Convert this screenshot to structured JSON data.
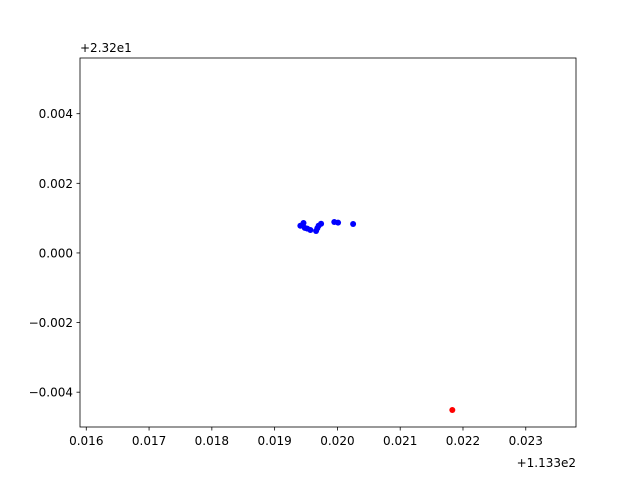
{
  "chart_data": {
    "type": "scatter",
    "x_offset_label": "+1.133e2",
    "y_offset_label": "+2.32e1",
    "xlim": [
      0.0159,
      0.0238
    ],
    "ylim": [
      -0.005,
      0.0056
    ],
    "xticks": [
      0.016,
      0.017,
      0.018,
      0.019,
      0.02,
      0.021,
      0.022,
      0.023
    ],
    "xtick_labels": [
      "0.016",
      "0.017",
      "0.018",
      "0.019",
      "0.020",
      "0.021",
      "0.022",
      "0.023"
    ],
    "yticks": [
      0.004,
      0.002,
      0.0,
      -0.002,
      -0.004
    ],
    "ytick_labels": [
      "0.004",
      "0.002",
      "0.000",
      "−0.002",
      "−0.004"
    ],
    "grid": false,
    "series": [
      {
        "color": "#0000ff",
        "points": [
          [
            0.01941,
            0.00078
          ],
          [
            0.01946,
            0.00086
          ],
          [
            0.01948,
            0.00072
          ],
          [
            0.01952,
            0.0007
          ],
          [
            0.01957,
            0.00066
          ],
          [
            0.01966,
            0.00063
          ],
          [
            0.01968,
            0.00071
          ],
          [
            0.0197,
            0.00078
          ],
          [
            0.01974,
            0.00084
          ],
          [
            0.01995,
            0.00089
          ],
          [
            0.02001,
            0.00087
          ],
          [
            0.02025,
            0.00083
          ]
        ]
      },
      {
        "color": "#ff0000",
        "points": [
          [
            0.02183,
            -0.00451
          ]
        ]
      }
    ]
  }
}
